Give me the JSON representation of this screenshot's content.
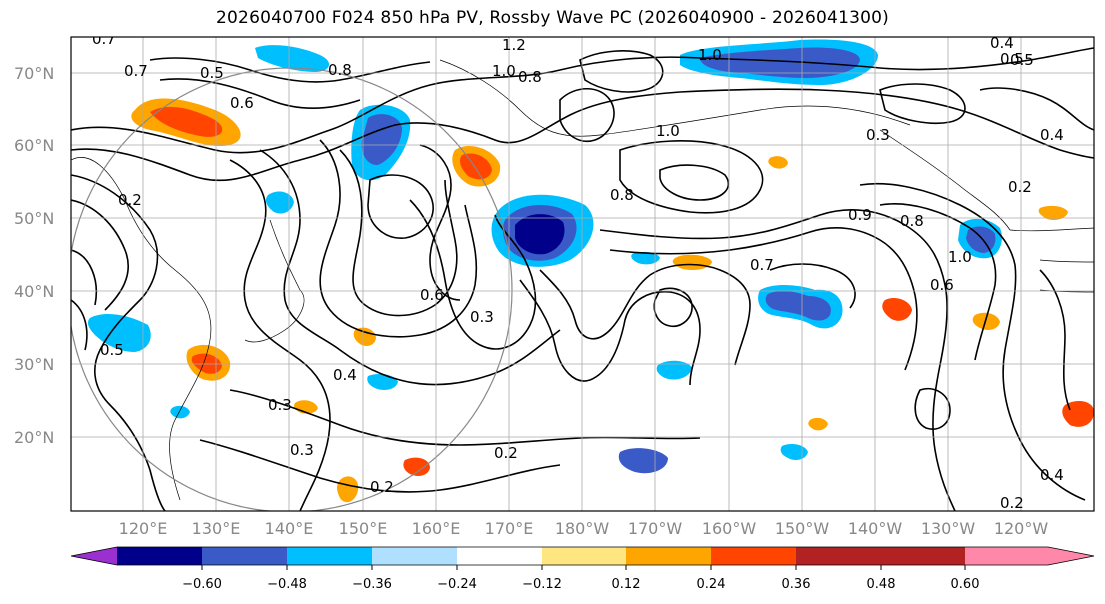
{
  "title": "2026040700 F024 850 hPa PV, Rossby Wave PC (2026040900 - 2026041300)",
  "map": {
    "lat_labels": [
      "70°N",
      "60°N",
      "50°N",
      "40°N",
      "30°N",
      "20°N"
    ],
    "lon_labels": [
      "120°E",
      "130°E",
      "140°E",
      "150°E",
      "160°E",
      "170°E",
      "180°W",
      "170°W",
      "160°W",
      "150°W",
      "140°W",
      "130°W",
      "120°W"
    ],
    "contour_labels": [
      "0.7",
      "1.2",
      "0.4",
      "0.5",
      "1.0",
      "0.8",
      "0.5",
      "0.7",
      "1.0",
      "0.6",
      "0.8",
      "0.3",
      "0.2",
      "0.3",
      "1.0",
      "0.8",
      "0.7",
      "0.9",
      "0.6",
      "0.3",
      "0.4",
      "0.3",
      "0.2",
      "0.2",
      "0.2",
      "0.4",
      "0.2",
      "0.5",
      "0.6",
      "1.0",
      "0.8",
      "0.5",
      "0.4"
    ]
  },
  "colorbar": {
    "tick_labels": [
      "−0.60",
      "−0.48",
      "−0.36",
      "−0.24",
      "−0.12",
      "0.12",
      "0.24",
      "0.36",
      "0.48",
      "0.60"
    ],
    "colors": [
      "#9b30d0",
      "#00008b",
      "#3a5bc7",
      "#00bfff",
      "#b0e0ff",
      "#ffffff",
      "#ffe680",
      "#ffa500",
      "#ff4500",
      "#b22222",
      "#ff88aa"
    ]
  }
}
